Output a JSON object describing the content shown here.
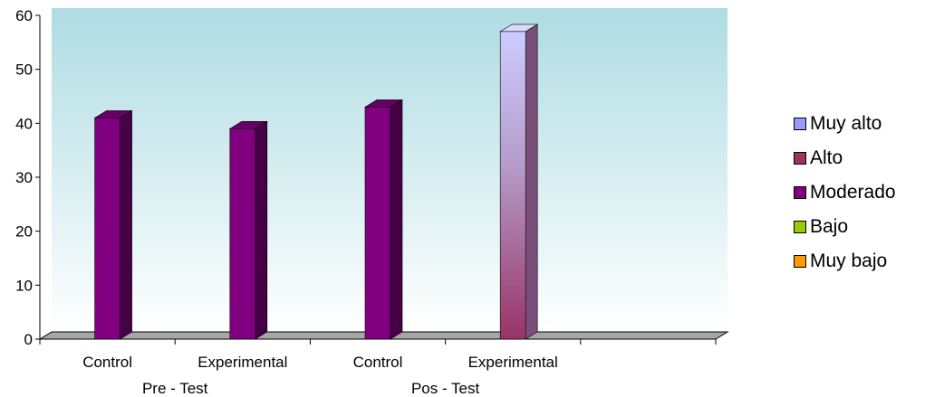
{
  "chart_data": {
    "type": "bar",
    "categories": [
      "Control",
      "Experimental",
      "Control",
      "Experimental"
    ],
    "groups": [
      "Pre - Test",
      "Pos - Test"
    ],
    "series": [
      {
        "name": "Muy alto",
        "color": "#9999ff",
        "values": [
          null,
          null,
          null,
          57
        ]
      },
      {
        "name": "Alto",
        "color": "#993366",
        "values": [
          null,
          null,
          null,
          null
        ]
      },
      {
        "name": "Moderado",
        "color": "#800080",
        "values": [
          41,
          39,
          43,
          null
        ]
      },
      {
        "name": "Bajo",
        "color": "#99cc00",
        "values": [
          null,
          null,
          null,
          null
        ]
      },
      {
        "name": "Muy bajo",
        "color": "#ff9900",
        "values": [
          null,
          null,
          null,
          null
        ]
      }
    ],
    "ylim": [
      0,
      60
    ],
    "yticks": [
      0,
      10,
      20,
      30,
      40,
      50,
      60
    ],
    "grid": false,
    "legend_position": "right",
    "title": "",
    "xlabel": "",
    "ylabel": ""
  }
}
